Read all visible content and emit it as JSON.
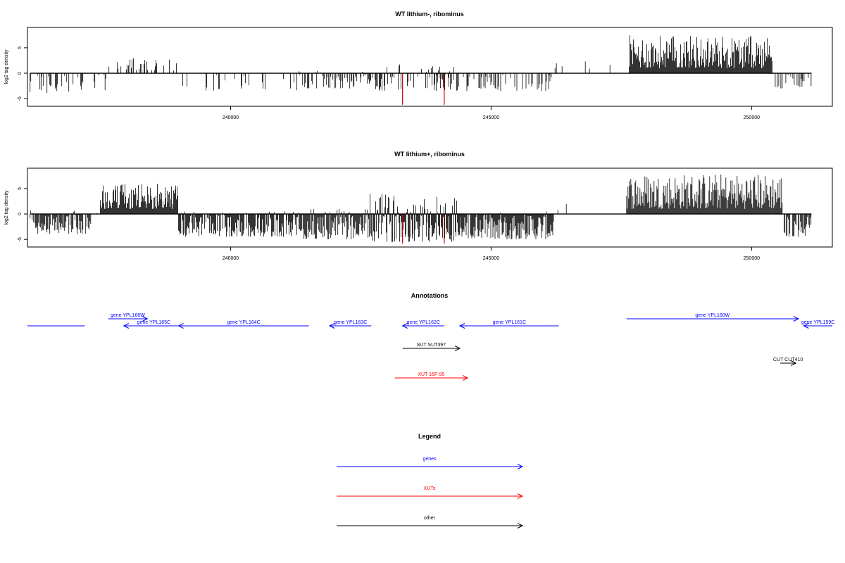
{
  "chart_data": [
    {
      "type": "bar",
      "title": "WT lithium-, ribominus",
      "xlabel": "",
      "ylabel": "log2 tag density",
      "xlim": [
        236100,
        251550
      ],
      "ylim": [
        -6.5,
        9
      ],
      "xticks": [
        240000,
        245000,
        250000
      ],
      "xtick_labels": [
        "240000",
        "245000",
        "250000"
      ],
      "yticks": [
        -5,
        0,
        5
      ],
      "ytick_labels": [
        "-5",
        "0",
        "5"
      ],
      "grid": false,
      "series_color": "#000000",
      "highlight_color": "#cc0000",
      "segments": [
        {
          "from": 236150,
          "to": 237400,
          "density": 0.35,
          "min": -4,
          "max": 0
        },
        {
          "from": 237400,
          "to": 237650,
          "density": 0.2,
          "min": -3.5,
          "max": 0
        },
        {
          "from": 237650,
          "to": 238000,
          "density": 0.4,
          "min": 0.5,
          "max": 3
        },
        {
          "from": 238000,
          "to": 239000,
          "density": 0.25,
          "min": 0.5,
          "max": 3
        },
        {
          "from": 239000,
          "to": 241300,
          "density": 0.15,
          "min": -3.5,
          "max": 0
        },
        {
          "from": 241300,
          "to": 242650,
          "density": 0.45,
          "min": -3,
          "max": 0.5
        },
        {
          "from": 242650,
          "to": 244400,
          "density": 0.55,
          "min": -3.5,
          "max": 2
        },
        {
          "from": 244400,
          "to": 246200,
          "density": 0.35,
          "min": -3.5,
          "max": 0
        },
        {
          "from": 246200,
          "to": 247650,
          "density": 0.03,
          "min": 0.5,
          "max": 2.5
        },
        {
          "from": 247650,
          "to": 250400,
          "density": 1.0,
          "min": 1,
          "max": 7.5
        },
        {
          "from": 250400,
          "to": 251150,
          "density": 0.25,
          "min": -3,
          "max": 0
        }
      ],
      "highlights": [
        {
          "x": 243300,
          "y": -6.2
        },
        {
          "x": 244100,
          "y": -6.2
        }
      ]
    },
    {
      "type": "bar",
      "title": "WT lithium+, ribominus",
      "xlabel": "",
      "ylabel": "log2 tag density",
      "xlim": [
        236100,
        251550
      ],
      "ylim": [
        -6.5,
        9
      ],
      "xticks": [
        240000,
        245000,
        250000
      ],
      "xtick_labels": [
        "240000",
        "245000",
        "250000"
      ],
      "yticks": [
        -5,
        0,
        5
      ],
      "ytick_labels": [
        "-5",
        "0",
        "5"
      ],
      "grid": false,
      "series_color": "#000000",
      "highlight_color": "#cc0000",
      "segments": [
        {
          "from": 236150,
          "to": 237300,
          "density": 0.9,
          "min": -4,
          "max": 0.8
        },
        {
          "from": 237300,
          "to": 237500,
          "density": 0.3,
          "min": -2,
          "max": 1
        },
        {
          "from": 237500,
          "to": 239000,
          "density": 1.0,
          "min": 1,
          "max": 6
        },
        {
          "from": 239000,
          "to": 241300,
          "density": 0.9,
          "min": -4.5,
          "max": 0.5
        },
        {
          "from": 241300,
          "to": 242650,
          "density": 1.0,
          "min": -5,
          "max": 1
        },
        {
          "from": 242650,
          "to": 244400,
          "density": 1.0,
          "min": -5.5,
          "max": 4
        },
        {
          "from": 244400,
          "to": 246200,
          "density": 1.0,
          "min": -5,
          "max": 0.5
        },
        {
          "from": 246200,
          "to": 247600,
          "density": 0.03,
          "min": 0.5,
          "max": 2
        },
        {
          "from": 247600,
          "to": 250600,
          "density": 1.0,
          "min": 1,
          "max": 8
        },
        {
          "from": 250600,
          "to": 251150,
          "density": 0.7,
          "min": -4.5,
          "max": 0
        }
      ],
      "highlights": [
        {
          "x": 243300,
          "y": -5.8
        },
        {
          "x": 244100,
          "y": -5.8
        }
      ]
    }
  ],
  "annotations": {
    "title": "Annotations",
    "items": [
      {
        "label": "gene YPL166W",
        "start": 237650,
        "end": 238400,
        "row": 1,
        "color": "#0000ff",
        "direction": "right"
      },
      {
        "label": "gene YPL165C",
        "start": 237950,
        "end": 239100,
        "row": 2,
        "color": "#0000ff",
        "direction": "left"
      },
      {
        "label": "gene YPL164C",
        "start": 239000,
        "end": 241500,
        "row": 2,
        "color": "#0000ff",
        "direction": "left"
      },
      {
        "label": "gene YPL163C",
        "start": 241900,
        "end": 242700,
        "row": 2,
        "color": "#0000ff",
        "direction": "left"
      },
      {
        "label": "gene YPL162C",
        "start": 243300,
        "end": 244100,
        "row": 2,
        "color": "#0000ff",
        "direction": "left"
      },
      {
        "label": "gene YPL161C",
        "start": 244400,
        "end": 246300,
        "row": 2,
        "color": "#0000ff",
        "direction": "left"
      },
      {
        "label": "gene YPL160W",
        "start": 247600,
        "end": 250900,
        "row": 1,
        "color": "#0000ff",
        "direction": "right"
      },
      {
        "label": "gene YPL159C",
        "start": 251000,
        "end": 251550,
        "row": 2,
        "color": "#0000ff",
        "direction": "left"
      },
      {
        "label": "",
        "start": 235500,
        "end": 237200,
        "row": 2,
        "color": "#0000ff",
        "direction": "none"
      },
      {
        "label": "SUT SUT397",
        "start": 243300,
        "end": 244400,
        "row": 3,
        "color": "#000000",
        "direction": "right"
      },
      {
        "label": "XUT 16F-95",
        "start": 243150,
        "end": 244550,
        "row": 4,
        "color": "#ff0000",
        "direction": "right"
      },
      {
        "label": "CUT CUT410",
        "start": 250550,
        "end": 250850,
        "row": 5,
        "color": "#000000",
        "direction": "right"
      }
    ]
  },
  "legend": {
    "title": "Legend",
    "items": [
      {
        "label": "genes",
        "color": "#0000ff"
      },
      {
        "label": "XUTs",
        "color": "#ff0000"
      },
      {
        "label": "other",
        "color": "#000000"
      }
    ]
  }
}
